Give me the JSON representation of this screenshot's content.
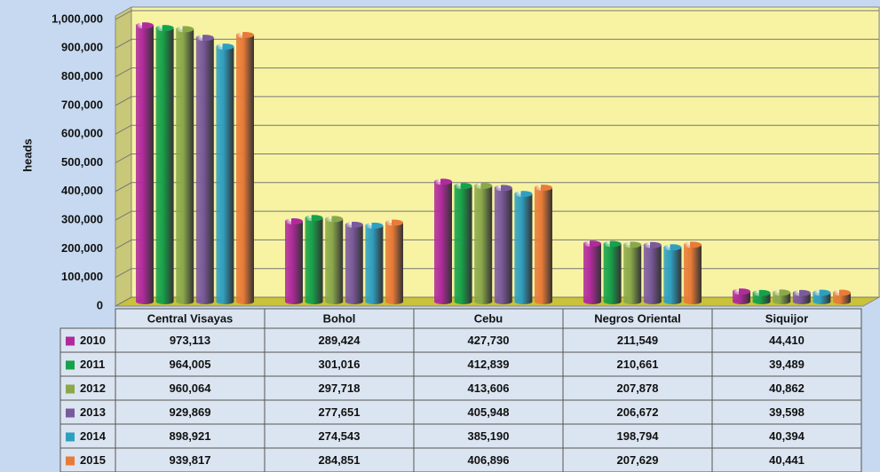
{
  "chart_data": {
    "type": "bar",
    "y_label": "heads",
    "categories": [
      "Central Visayas",
      "Bohol",
      "Cebu",
      "Negros Oriental",
      "Siquijor"
    ],
    "series": [
      {
        "name": "2010",
        "color": "#b02a9c",
        "values": [
          973113,
          289424,
          427730,
          211549,
          44410
        ],
        "value_labels": [
          "973,113",
          "289,424",
          "427,730",
          "211,549",
          "44,410"
        ]
      },
      {
        "name": "2011",
        "color": "#17a14a",
        "values": [
          964005,
          301016,
          412839,
          210661,
          39489
        ],
        "value_labels": [
          "964,005",
          "301,016",
          "412,839",
          "210,661",
          "39,489"
        ]
      },
      {
        "name": "2012",
        "color": "#8aa84a",
        "values": [
          960064,
          297718,
          413606,
          207878,
          40862
        ],
        "value_labels": [
          "960,064",
          "297,718",
          "413,606",
          "207,878",
          "40,862"
        ]
      },
      {
        "name": "2013",
        "color": "#7b5a9c",
        "values": [
          929869,
          277651,
          405948,
          206672,
          39598
        ],
        "value_labels": [
          "929,869",
          "277,651",
          "405,948",
          "206,672",
          "39,598"
        ]
      },
      {
        "name": "2014",
        "color": "#2f9fc0",
        "values": [
          898921,
          274543,
          385190,
          198794,
          40394
        ],
        "value_labels": [
          "898,921",
          "274,543",
          "385,190",
          "198,794",
          "40,394"
        ]
      },
      {
        "name": "2015",
        "color": "#e87b37",
        "values": [
          939817,
          284851,
          406896,
          207629,
          40441
        ],
        "value_labels": [
          "939,817",
          "284,851",
          "406,896",
          "207,629",
          "40,441"
        ]
      }
    ],
    "ylim": [
      0,
      1000000
    ],
    "yticks": [
      0,
      {
        "value": 100000,
        "label": "100,000"
      },
      {
        "value": 200000,
        "label": "200,000"
      },
      {
        "value": 300000,
        "label": "300,000"
      },
      {
        "value": 400000,
        "label": "400,000"
      },
      {
        "value": 500000,
        "label": "500,000"
      },
      {
        "value": 600000,
        "label": "600,000"
      },
      {
        "value": 700000,
        "label": "700,000"
      },
      {
        "value": 800000,
        "label": "800,000"
      },
      {
        "value": 900000,
        "label": "900,000"
      },
      {
        "value": 1000000,
        "label": "1,000,000"
      }
    ],
    "grid": true
  }
}
